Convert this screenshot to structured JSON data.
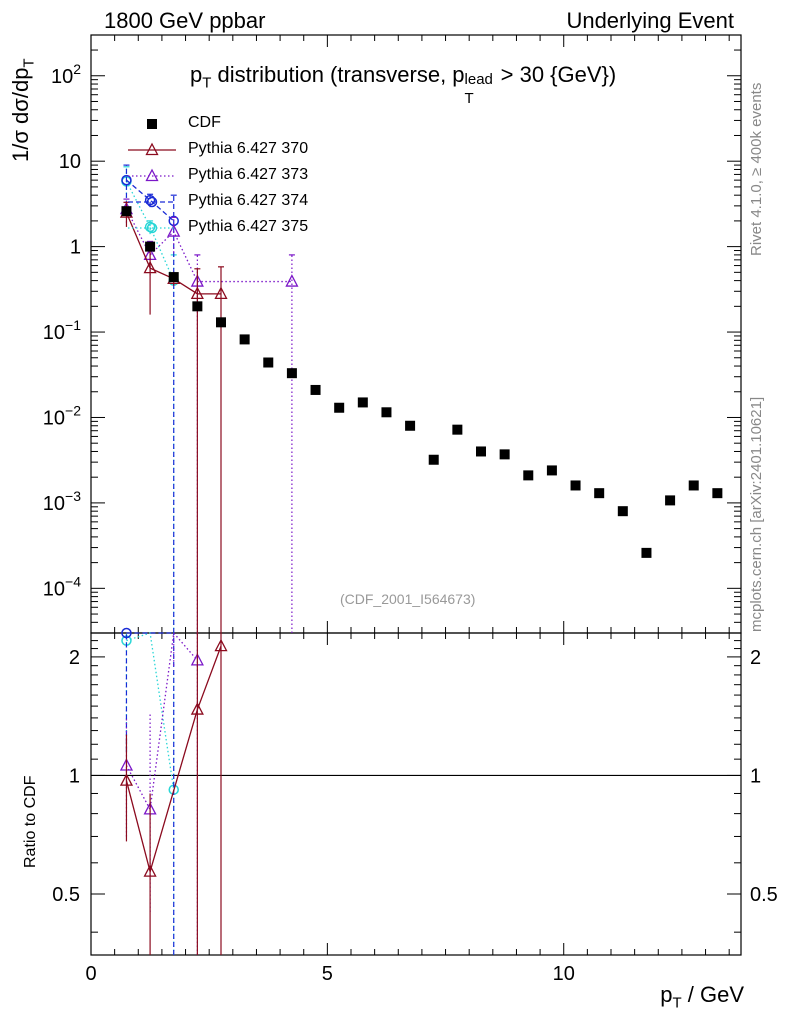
{
  "header": {
    "left": "1800 GeV ppbar",
    "right": "Underlying Event"
  },
  "side_labels": {
    "rivet": "Rivet 4.1.0, ≥ 400k events",
    "mcplots": "mcplots.cern.ch [arXiv:2401.10621]"
  },
  "chart_data": {
    "type": "scatter",
    "title": "p_T distribution (transverse, p_T^lead > 30 {GeV})",
    "title_parts": {
      "p": "p",
      "sub_T": "T",
      "mid": " distribution (transverse, p",
      "sup_lead": "lead",
      "sub_T2": "T",
      "end": " > 30 {GeV})"
    },
    "xlabel_parts": {
      "p": "p",
      "sub": "T",
      "rest": " / GeV"
    },
    "ylabel_parts": {
      "a": "1/σ  dσ/dp",
      "sub": "T"
    },
    "ratio_ylabel": "Ratio to CDF",
    "annotation": "(CDF_2001_I564673)",
    "xlim": [
      0,
      13.75
    ],
    "ylim": [
      3e-05,
      300
    ],
    "ratio_ylim": [
      0.35,
      2.3
    ],
    "x_ticks": [
      0,
      5,
      10
    ],
    "x_tick_labels": [
      "0",
      "5",
      "10"
    ],
    "y_ticks": [
      0.0001,
      0.001,
      0.01,
      0.1,
      1,
      10,
      100
    ],
    "y_tick_labels": [
      {
        "base": "10",
        "exp": "−4"
      },
      {
        "base": "10",
        "exp": "−3"
      },
      {
        "base": "10",
        "exp": "−2"
      },
      {
        "base": "10",
        "exp": "−1"
      },
      {
        "base": "1",
        "exp": ""
      },
      {
        "base": "10",
        "exp": ""
      },
      {
        "base": "10",
        "exp": "2"
      }
    ],
    "ratio_ticks": [
      0.5,
      1,
      2
    ],
    "ratio_tick_labels": [
      "0.5",
      "1",
      "2"
    ],
    "series": [
      {
        "name": "CDF",
        "color": "#000000",
        "marker": "square",
        "x": [
          0.75,
          1.25,
          1.75,
          2.25,
          2.75,
          3.25,
          3.75,
          4.25,
          4.75,
          5.25,
          5.75,
          6.25,
          6.75,
          7.25,
          7.75,
          8.25,
          8.75,
          9.25,
          9.75,
          10.25,
          10.75,
          11.25,
          11.75,
          12.25,
          12.75,
          13.25
        ],
        "y": [
          2.6,
          1.0,
          0.44,
          0.2,
          0.13,
          0.082,
          0.044,
          0.033,
          0.021,
          0.013,
          0.015,
          0.0115,
          0.008,
          0.0032,
          0.0072,
          0.004,
          0.0037,
          0.0021,
          0.0024,
          0.0016,
          0.0013,
          0.0008,
          0.00026,
          0.00107,
          0.0016,
          0.0013
        ]
      },
      {
        "name": "Pythia 6.427 370",
        "color": "#8b0a1e",
        "marker": "triangle",
        "linestyle": "solid",
        "x": [
          0.75,
          1.25,
          1.75,
          2.25,
          2.75
        ],
        "y": [
          2.5,
          0.56,
          0.42,
          0.28,
          0.28
        ],
        "ylo": [
          1.7,
          0.16,
          0.35,
          1e-05,
          1e-05
        ],
        "yhi": [
          3.3,
          0.96,
          0.49,
          0.55,
          0.58
        ],
        "ratio": [
          0.97,
          0.57,
          null,
          1.47,
          2.13
        ],
        "ratio_lo": [
          0.68,
          0.2,
          null,
          0.0,
          0.0
        ],
        "ratio_hi": [
          1.27,
          0.9,
          null,
          2.9,
          4.0
        ]
      },
      {
        "name": "Pythia 6.427 373",
        "color": "#7b17c8",
        "marker": "triangle",
        "linestyle": "dotted",
        "x": [
          0.75,
          1.25,
          1.75,
          2.25,
          4.25
        ],
        "y": [
          2.75,
          0.8,
          1.5,
          0.39,
          0.39
        ],
        "ylo": [
          1.9,
          0.46,
          0.85,
          1e-05,
          1e-05
        ],
        "yhi": [
          3.6,
          1.15,
          2.2,
          0.8,
          0.8
        ],
        "ratio": [
          1.06,
          0.82,
          3.4,
          1.96,
          null
        ],
        "ratio_lo": [
          0.7,
          0.45,
          1.9,
          0.0,
          null
        ],
        "ratio_hi": [
          1.4,
          1.43,
          5.0,
          3.9,
          null
        ]
      },
      {
        "name": "Pythia 6.427 374",
        "color": "#1a2bd6",
        "marker": "circle",
        "linestyle": "dashed",
        "x": [
          0.75,
          1.25,
          1.75
        ],
        "y": [
          6.0,
          3.5,
          2.0
        ],
        "ylo": [
          3.0,
          2.9,
          1e-05
        ],
        "yhi": [
          9.0,
          4.1,
          4.0
        ],
        "ratio": [
          2.3,
          3.5,
          4.5
        ],
        "ratio_lo": [
          1.15,
          2.9,
          0.0
        ],
        "ratio_hi": [
          3.45,
          4.1,
          9.0
        ]
      },
      {
        "name": "Pythia 6.427 375",
        "color": "#29d6d6",
        "marker": "circle",
        "linestyle": "dotted",
        "x": [
          0.75,
          1.25,
          1.75
        ],
        "y": [
          5.8,
          1.7,
          0.4
        ],
        "ylo": [
          3.0,
          1.4,
          1e-05
        ],
        "yhi": [
          8.6,
          2.0,
          0.8
        ],
        "ratio": [
          2.2,
          3.0,
          0.92
        ],
        "ratio_lo": [
          1.15,
          2.5,
          0.0
        ],
        "ratio_hi": [
          3.3,
          3.5,
          1.85
        ]
      }
    ]
  }
}
